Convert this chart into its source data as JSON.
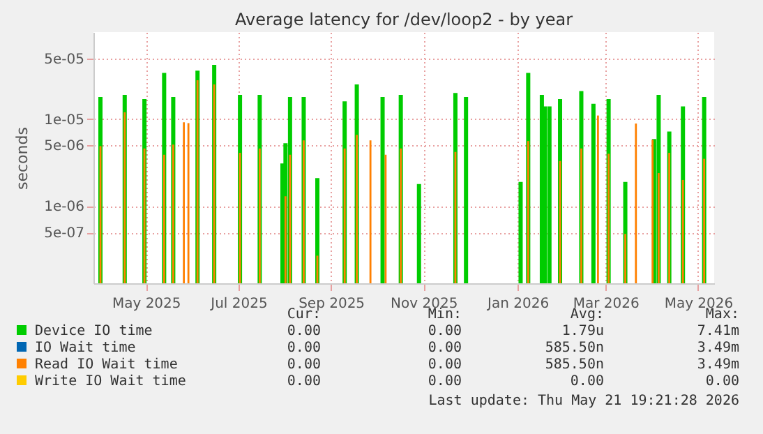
{
  "chart_data": {
    "type": "bar",
    "title": "Average latency for /dev/loop2 - by year",
    "ylabel": "seconds",
    "log": true,
    "grid": true,
    "legend": "bottom",
    "xlim": [
      "2025-04-16",
      "2026-05-21"
    ],
    "xticks": [
      {
        "value": "2025-05-16",
        "label": "May 2025"
      },
      {
        "value": "2025-07-16",
        "label": "Jul 2025"
      },
      {
        "value": "2025-09-15",
        "label": "Sep 2025"
      },
      {
        "value": "2025-11-15",
        "label": "Nov 2025"
      },
      {
        "value": "2026-01-16",
        "label": "Jan 2026"
      },
      {
        "value": "2026-03-15",
        "label": "Mar 2026"
      },
      {
        "value": "2026-05-15",
        "label": "May 2026"
      }
    ],
    "ylim": [
      1.3e-07,
      0.0001
    ],
    "yticks": [
      {
        "value": 5e-07,
        "label": "5e-07"
      },
      {
        "value": 1e-06,
        "label": "1e-06"
      },
      {
        "value": 5e-06,
        "label": "5e-06"
      },
      {
        "value": 1e-05,
        "label": "1e-05"
      },
      {
        "value": 5e-05,
        "label": "5e-05"
      }
    ],
    "series": [
      {
        "name": "Device IO time",
        "color": "#00cc00",
        "x": [
          "2025-04-16",
          "2025-05-02",
          "2025-05-15",
          "2025-05-28",
          "2025-06-03",
          "2025-06-19",
          "2025-06-30",
          "2025-07-17",
          "2025-07-30",
          "2025-08-14",
          "2025-08-16",
          "2025-08-19",
          "2025-08-28",
          "2025-09-06",
          "2025-09-24",
          "2025-10-02",
          "2025-10-19",
          "2025-10-31",
          "2025-11-12",
          "2025-12-06",
          "2025-12-13",
          "2026-01-18",
          "2026-01-23",
          "2026-02-01",
          "2026-02-03",
          "2026-02-06",
          "2026-02-13",
          "2026-02-27",
          "2026-03-07",
          "2026-03-17",
          "2026-03-28",
          "2026-04-16",
          "2026-04-19",
          "2026-04-26",
          "2026-05-05",
          "2026-05-19"
        ],
        "values": [
          1.8e-05,
          1.9e-05,
          1.7e-05,
          3.4e-05,
          1.8e-05,
          3.6e-05,
          4.2e-05,
          1.9e-05,
          1.9e-05,
          3.1e-06,
          5.3e-06,
          1.8e-05,
          1.8e-05,
          2.1e-06,
          1.6e-05,
          2.5e-05,
          1.8e-05,
          1.9e-05,
          1.8e-06,
          2e-05,
          1.8e-05,
          1.9e-06,
          3.4e-05,
          1.9e-05,
          1.4e-05,
          1.4e-05,
          1.7e-05,
          2.1e-05,
          1.5e-05,
          1.7e-05,
          1.9e-06,
          5.9e-06,
          1.9e-05,
          7.2e-06,
          1.4e-05,
          1.8e-05
        ]
      },
      {
        "name": "IO Wait time",
        "color": "#0066b3"
      },
      {
        "name": "Read IO Wait time",
        "color": "#ff8000",
        "x": [
          "2025-04-16",
          "2025-05-02",
          "2025-05-15",
          "2025-05-28",
          "2025-06-03",
          "2025-06-10",
          "2025-06-13",
          "2025-06-19",
          "2025-06-30",
          "2025-07-17",
          "2025-07-30",
          "2025-08-16",
          "2025-08-19",
          "2025-08-28",
          "2025-09-06",
          "2025-09-24",
          "2025-10-02",
          "2025-10-11",
          "2025-10-21",
          "2025-10-31",
          "2025-12-06",
          "2026-01-23",
          "2026-02-13",
          "2026-02-27",
          "2026-03-10",
          "2026-03-17",
          "2026-03-28",
          "2026-04-04",
          "2026-04-15",
          "2026-04-19",
          "2026-04-26",
          "2026-05-05",
          "2026-05-19"
        ],
        "values": [
          4.9e-06,
          1.2e-05,
          4.6e-06,
          3.9e-06,
          5.1e-06,
          9.2e-06,
          9e-06,
          2.8e-05,
          2.5e-05,
          4.1e-06,
          4.6e-06,
          1.3e-06,
          3.9e-06,
          5.7e-06,
          2.7e-07,
          4.6e-06,
          6.6e-06,
          5.7e-06,
          3.9e-06,
          4.6e-06,
          4.2e-06,
          5.6e-06,
          3.3e-06,
          4.6e-06,
          1.1e-05,
          4e-06,
          4.8e-07,
          8.9e-06,
          5.8e-06,
          2.4e-06,
          4.1e-06,
          2e-06,
          3.5e-06
        ]
      },
      {
        "name": "Write IO Wait time",
        "color": "#ffcc00"
      }
    ],
    "annotations": [
      "Cur:",
      "Min:",
      "Avg:",
      "Max:",
      "0.00",
      "0.00",
      "1.79u",
      "7.41m",
      "0.00",
      "0.00",
      "585.50n",
      "3.49m",
      "0.00",
      "0.00",
      "585.50n",
      "3.49m",
      "0.00",
      "0.00",
      "0.00",
      "0.00",
      "Last update: Thu May 21 19:21:28 2026"
    ]
  }
}
